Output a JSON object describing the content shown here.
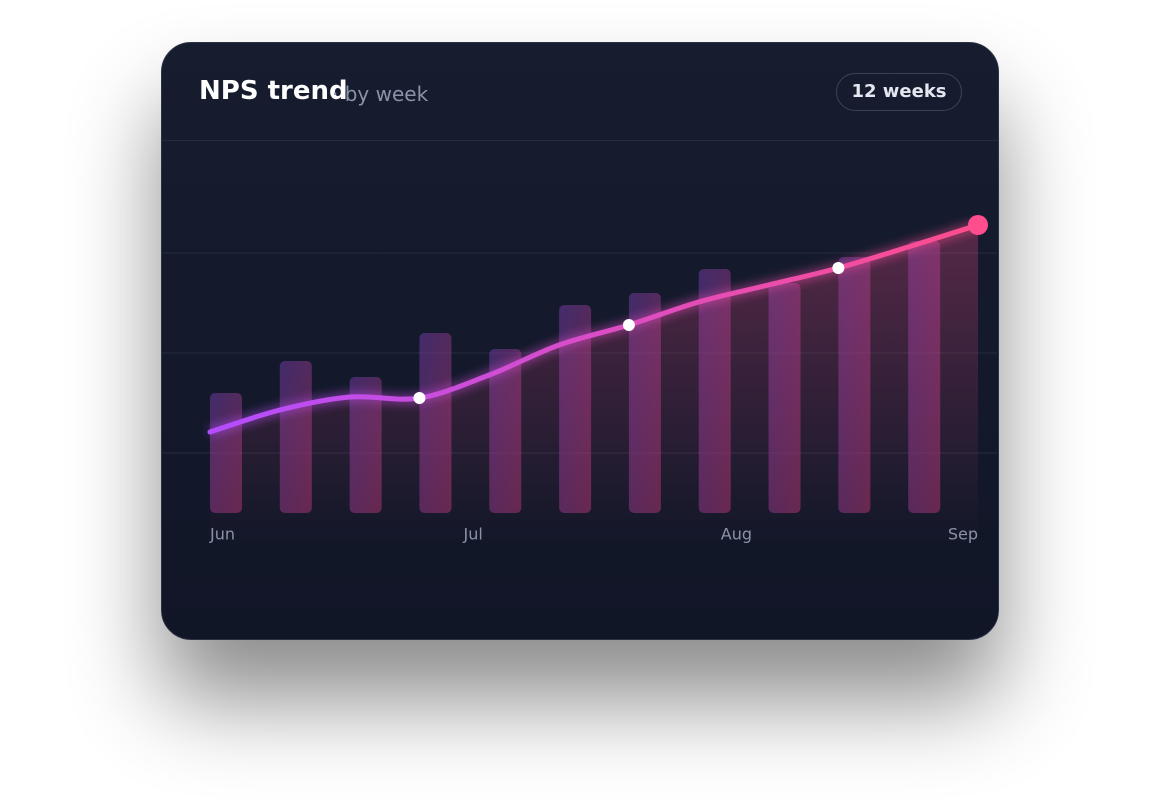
{
  "card": {
    "title": "NPS trend",
    "subtitle": "· by week",
    "badge": "12 weeks"
  },
  "chart_data": {
    "type": "combo",
    "xlim": [
      0,
      11
    ],
    "xticks": [
      {
        "value": 0,
        "label": "Jun"
      },
      {
        "value": 3.77,
        "label": "Jul"
      },
      {
        "value": 7.54,
        "label": "Aug"
      },
      {
        "value": 11,
        "label": "Sep"
      }
    ],
    "ylim": [
      8,
      80
    ],
    "yticks": [
      20,
      40,
      60
    ],
    "grid": true,
    "bars": {
      "x": [
        0,
        1,
        2,
        3,
        4,
        5,
        6,
        7,
        8,
        9,
        10
      ],
      "values": [
        32,
        38.4,
        35.2,
        44,
        40.8,
        49.6,
        52,
        56.8,
        54,
        59.2,
        62.4
      ],
      "color": [
        "#6a3a9e",
        "#a8336b"
      ]
    },
    "line": {
      "x": [
        0,
        1,
        2,
        3,
        4,
        5,
        6,
        7,
        8,
        9,
        10,
        11
      ],
      "values": [
        24.2,
        28.6,
        31.2,
        31,
        35.6,
        41.6,
        45.6,
        50.2,
        53.6,
        57,
        61.2,
        65.6
      ],
      "color": [
        "#b44dff",
        "#ff4d8d"
      ]
    }
  }
}
